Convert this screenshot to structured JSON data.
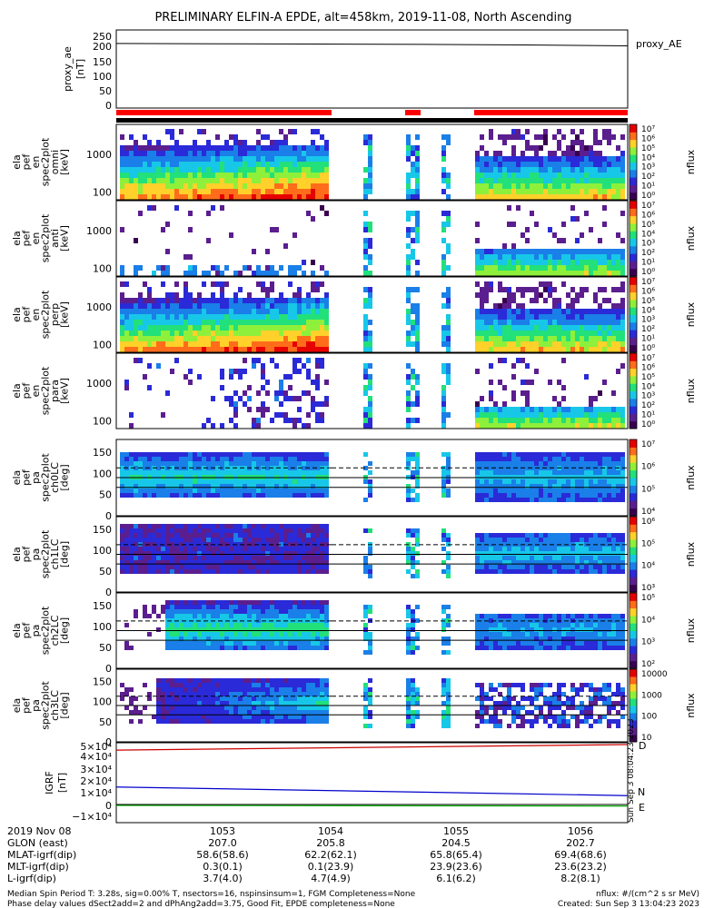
{
  "title": "PRELIMINARY ELFIN-A EPDE, alt=458km, 2019-11-08, North Ascending",
  "colors": {
    "ae_line": "#000000",
    "status_bar": "#ff0000",
    "igrf_D": "#cc0000",
    "igrf_N": "#0000cc",
    "igrf_E": "#00aa00",
    "colormap": [
      "#3a0050",
      "#5b1e8f",
      "#2a2ad8",
      "#1a7fe8",
      "#17c7e8",
      "#22e07a",
      "#8ef03a",
      "#ffd12a",
      "#ff6d1a",
      "#e60000"
    ]
  },
  "panels": {
    "ae": {
      "ylabel": [
        "proxy_ae",
        "[nT]"
      ],
      "yticks": [
        "250",
        "200",
        "150",
        "100",
        "50",
        "0"
      ],
      "legend": "proxy_AE"
    },
    "en1": {
      "ylabel": [
        "ela",
        "pef",
        "en",
        "spec2plot",
        "omni",
        "[keV]"
      ],
      "yticks": [
        "1000",
        "100"
      ],
      "cblabel": "nflux",
      "cbticks": [
        "10⁷",
        "10⁶",
        "10⁵",
        "10⁴",
        "10³",
        "10²",
        "10¹",
        "10⁰"
      ]
    },
    "en2": {
      "ylabel": [
        "ela",
        "pef",
        "en",
        "spec2plot",
        "anti",
        "[keV]"
      ],
      "yticks": [
        "1000",
        "100"
      ],
      "cblabel": "nflux",
      "cbticks": [
        "10⁷",
        "10⁶",
        "10⁵",
        "10⁴",
        "10³",
        "10²",
        "10¹",
        "10⁰"
      ]
    },
    "en3": {
      "ylabel": [
        "ela",
        "pef",
        "en",
        "spec2plot",
        "perp",
        "[keV]"
      ],
      "yticks": [
        "1000",
        "100"
      ],
      "cblabel": "nflux",
      "cbticks": [
        "10⁷",
        "10⁶",
        "10⁵",
        "10⁴",
        "10³",
        "10²",
        "10¹",
        "10⁰"
      ]
    },
    "en4": {
      "ylabel": [
        "ela",
        "pef",
        "en",
        "spec2plot",
        "para",
        "[keV]"
      ],
      "yticks": [
        "1000",
        "100"
      ],
      "cblabel": "nflux",
      "cbticks": [
        "10⁷",
        "10⁶",
        "10⁵",
        "10⁴",
        "10³",
        "10²",
        "10¹",
        "10⁰"
      ]
    },
    "pa0": {
      "ylabel": [
        "ela",
        "pef",
        "pa",
        "spec2plot",
        "ch0LC",
        "[deg]"
      ],
      "yticks": [
        "150",
        "100",
        "50",
        "0"
      ],
      "cblabel": "nflux",
      "cbticks": [
        "10⁷",
        "10⁶",
        "10⁵",
        "10⁴"
      ]
    },
    "pa1": {
      "ylabel": [
        "ela",
        "pef",
        "pa",
        "spec2plot",
        "ch1LC",
        "[deg]"
      ],
      "yticks": [
        "150",
        "100",
        "50",
        "0"
      ],
      "cblabel": "nflux",
      "cbticks": [
        "10⁶",
        "10⁵",
        "10⁴",
        "10³"
      ]
    },
    "pa2": {
      "ylabel": [
        "ela",
        "pef",
        "pa",
        "spec2plot",
        "ch2LC",
        "[deg]"
      ],
      "yticks": [
        "150",
        "100",
        "50",
        "0"
      ],
      "cblabel": "nflux",
      "cbticks": [
        "10⁵",
        "10⁴",
        "10³",
        "10²"
      ]
    },
    "pa3": {
      "ylabel": [
        "ela",
        "pef",
        "pa",
        "spec2plot",
        "ch3LC",
        "[deg]"
      ],
      "yticks": [
        "150",
        "100",
        "50",
        "0"
      ],
      "cblabel": "nflux",
      "cbticks": [
        "10000",
        "1000",
        "100",
        "10"
      ]
    },
    "igrf": {
      "ylabel": [
        "IGRF",
        "[nT]"
      ],
      "yticks": [
        "5×10⁴",
        "4×10⁴",
        "3×10⁴",
        "2×10⁴",
        "1×10⁴",
        "0",
        "−1×10⁴"
      ],
      "legend": [
        "D",
        "N",
        "E"
      ],
      "side_text": "Sun Sep  3 08:04:23 2023"
    }
  },
  "time_axis": {
    "ticks": [
      "1053",
      "1054",
      "1055",
      "1056"
    ],
    "rows": [
      {
        "label": "2019 Nov 08",
        "values": [
          "1053",
          "1054",
          "1055",
          "1056"
        ]
      },
      {
        "label": "GLON (east)",
        "values": [
          "207.0",
          "205.8",
          "204.5",
          "202.7"
        ]
      },
      {
        "label": "MLAT-igrf(dip)",
        "values": [
          "58.6(58.6)",
          "62.2(62.1)",
          "65.8(65.4)",
          "69.4(68.6)"
        ]
      },
      {
        "label": "MLT-igrf(dip)",
        "values": [
          "0.3(0.1)",
          "0.1(23.9)",
          "23.9(23.6)",
          "23.6(23.2)"
        ]
      },
      {
        "label": "L-igrf(dip)",
        "values": [
          "3.7(4.0)",
          "4.7(4.9)",
          "6.1(6.2)",
          "8.2(8.1)"
        ]
      }
    ]
  },
  "footer": {
    "line1": "Median Spin Period T: 3.28s, sig=0.00% T, nsectors=16, nspinsinsum=1, FGM Completeness=None",
    "line2": "Phase delay values dSect2add=2 and dPhAng2add=3.75, Good Fit, EPDE completeness=None",
    "units": "nflux: #/(cm^2 s sr MeV)",
    "created": "Created: Sun Sep  3 13:04:23 2023"
  },
  "chart_data": {
    "type": "heatmap",
    "title": "PRELIMINARY ELFIN-A EPDE, alt=458km, 2019-11-08, North Ascending",
    "x_ticks": [
      "1053",
      "1054",
      "1055",
      "1056"
    ],
    "proxy_ae": {
      "ylim": [
        0,
        260
      ],
      "values_nT": [
        215,
        214,
        213,
        212,
        210,
        207
      ],
      "legend": "proxy_AE"
    },
    "energy_spectra_ylim_keV": [
      60,
      7000
    ],
    "pitch_angle_ylim_deg": [
      0,
      180
    ],
    "loss_cone_lines_deg": [
      67,
      113
    ],
    "data_gaps_minute_fraction": [
      [
        0.0,
        0.0
      ]
    ],
    "igrf": {
      "ylim": [
        -15000,
        50000
      ],
      "series": [
        {
          "name": "D",
          "start": 44000,
          "end": 48500
        },
        {
          "name": "N",
          "start": 14000,
          "end": 7000
        },
        {
          "name": "E",
          "start": -1000,
          "end": -1500
        }
      ]
    }
  }
}
